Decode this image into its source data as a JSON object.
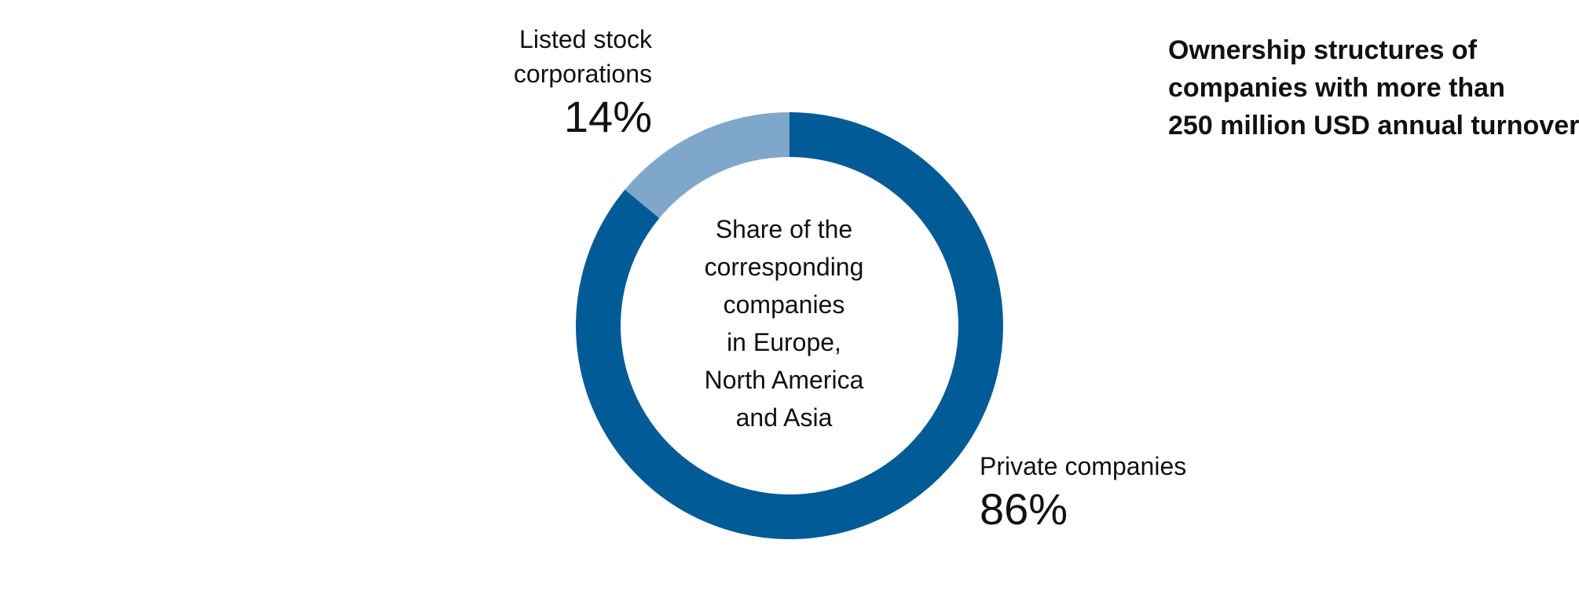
{
  "chart_data": {
    "type": "pie",
    "title": "Ownership structures of companies with more than 250 million USD annual turnover",
    "title_lines": [
      "Ownership structures of",
      "companies with more than",
      "250 million USD annual turnover"
    ],
    "center_label_lines": [
      "Share of the",
      "corresponding",
      "companies",
      "in Europe,",
      "North America",
      "and Asia"
    ],
    "categories": [
      "Private companies",
      "Listed stock corporations"
    ],
    "values": [
      86,
      14
    ],
    "unit": "%",
    "slices": [
      {
        "label": "Private companies",
        "label_lines": [
          "Private companies"
        ],
        "value": 86,
        "value_label": "86%",
        "color": "#005b96"
      },
      {
        "label": "Listed stock corporations",
        "label_lines": [
          "Listed stock",
          "corporations"
        ],
        "value": 14,
        "value_label": "14%",
        "color": "#7fa7c9"
      }
    ],
    "legend": "none",
    "grid": false
  }
}
